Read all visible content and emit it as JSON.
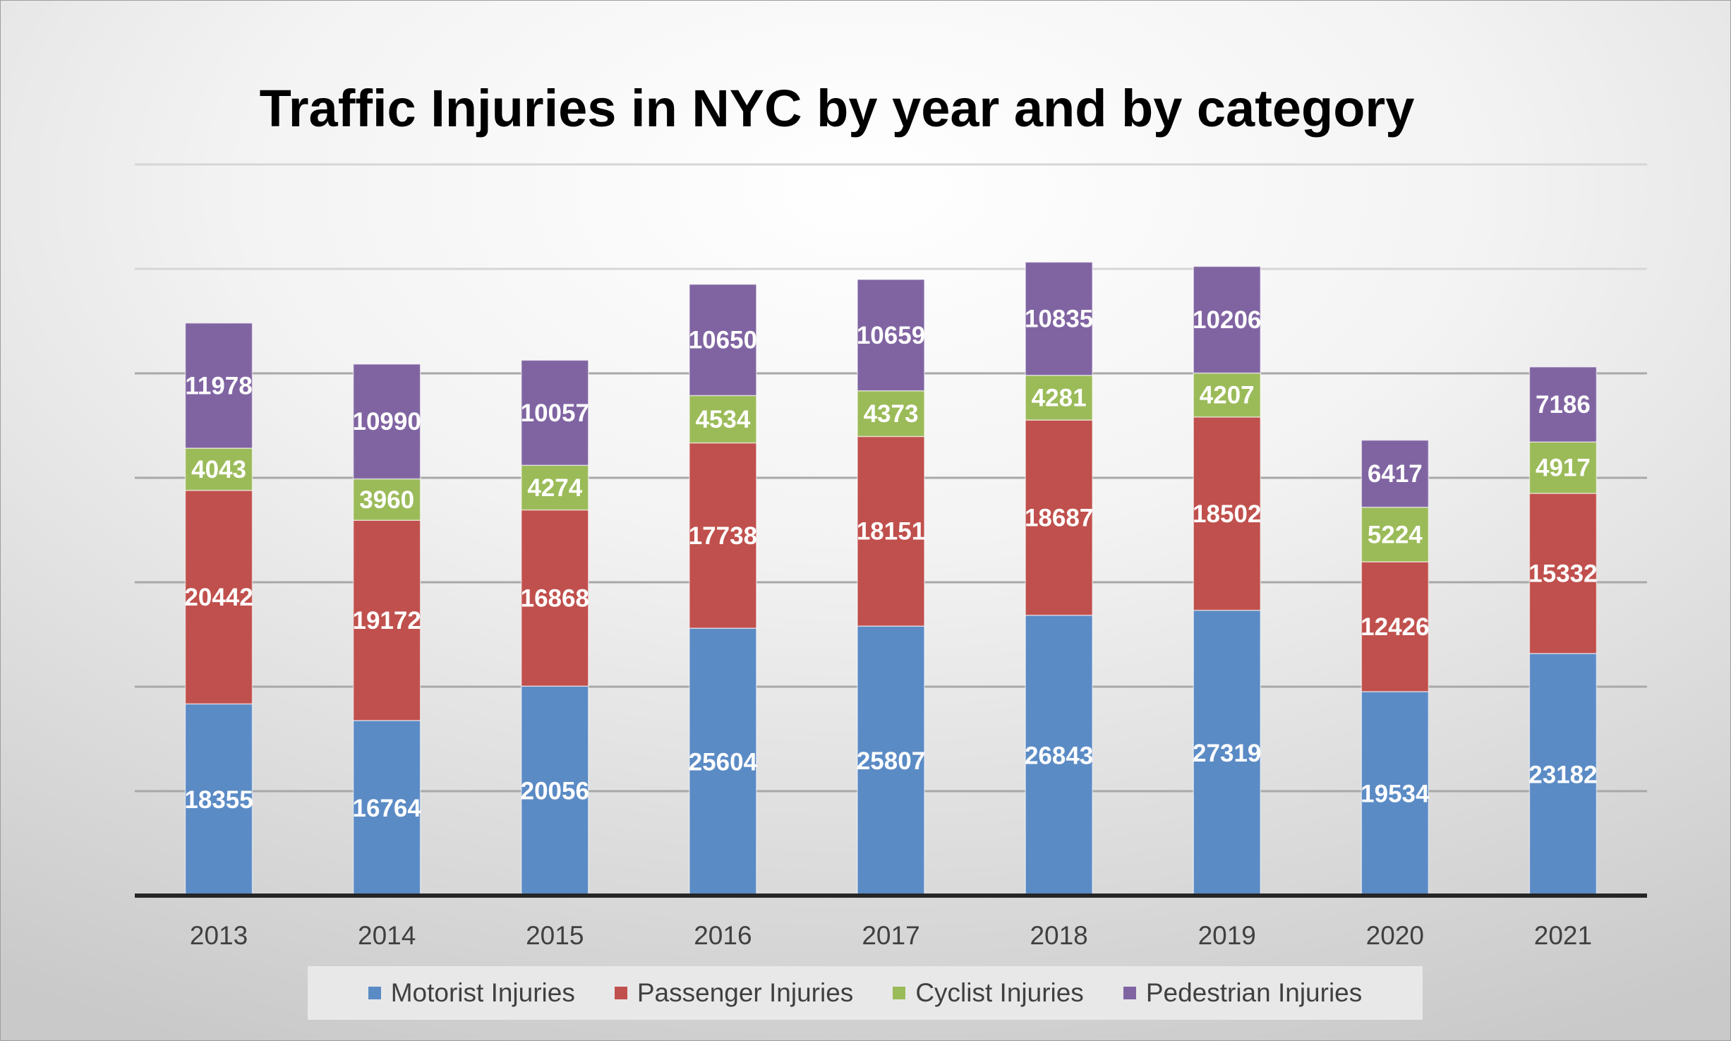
{
  "chart_data": {
    "type": "bar",
    "stacked": true,
    "title": "Traffic Injuries in NYC by year and by category",
    "categories": [
      "2013",
      "2014",
      "2015",
      "2016",
      "2017",
      "2018",
      "2019",
      "2020",
      "2021"
    ],
    "series": [
      {
        "name": "Motorist Injuries",
        "color": "#5b8bc5",
        "values": [
          18355,
          16764,
          20056,
          25604,
          25807,
          26843,
          27319,
          19534,
          23182
        ]
      },
      {
        "name": "Passenger Injuries",
        "color": "#c0504d",
        "values": [
          20442,
          19172,
          16868,
          17738,
          18151,
          18687,
          18502,
          12426,
          15332
        ]
      },
      {
        "name": "Cyclist Injuries",
        "color": "#9bbb59",
        "values": [
          4043,
          3960,
          4274,
          4534,
          4373,
          4281,
          4207,
          5224,
          4917
        ]
      },
      {
        "name": "Pedestrian Injuries",
        "color": "#8064a2",
        "values": [
          11978,
          10990,
          10057,
          10650,
          10659,
          10835,
          10206,
          6417,
          7186
        ]
      }
    ],
    "ylim": [
      0,
      70000
    ],
    "grid": true,
    "data_labels": true,
    "legend": "bottom",
    "xlabel": "",
    "ylabel": ""
  }
}
